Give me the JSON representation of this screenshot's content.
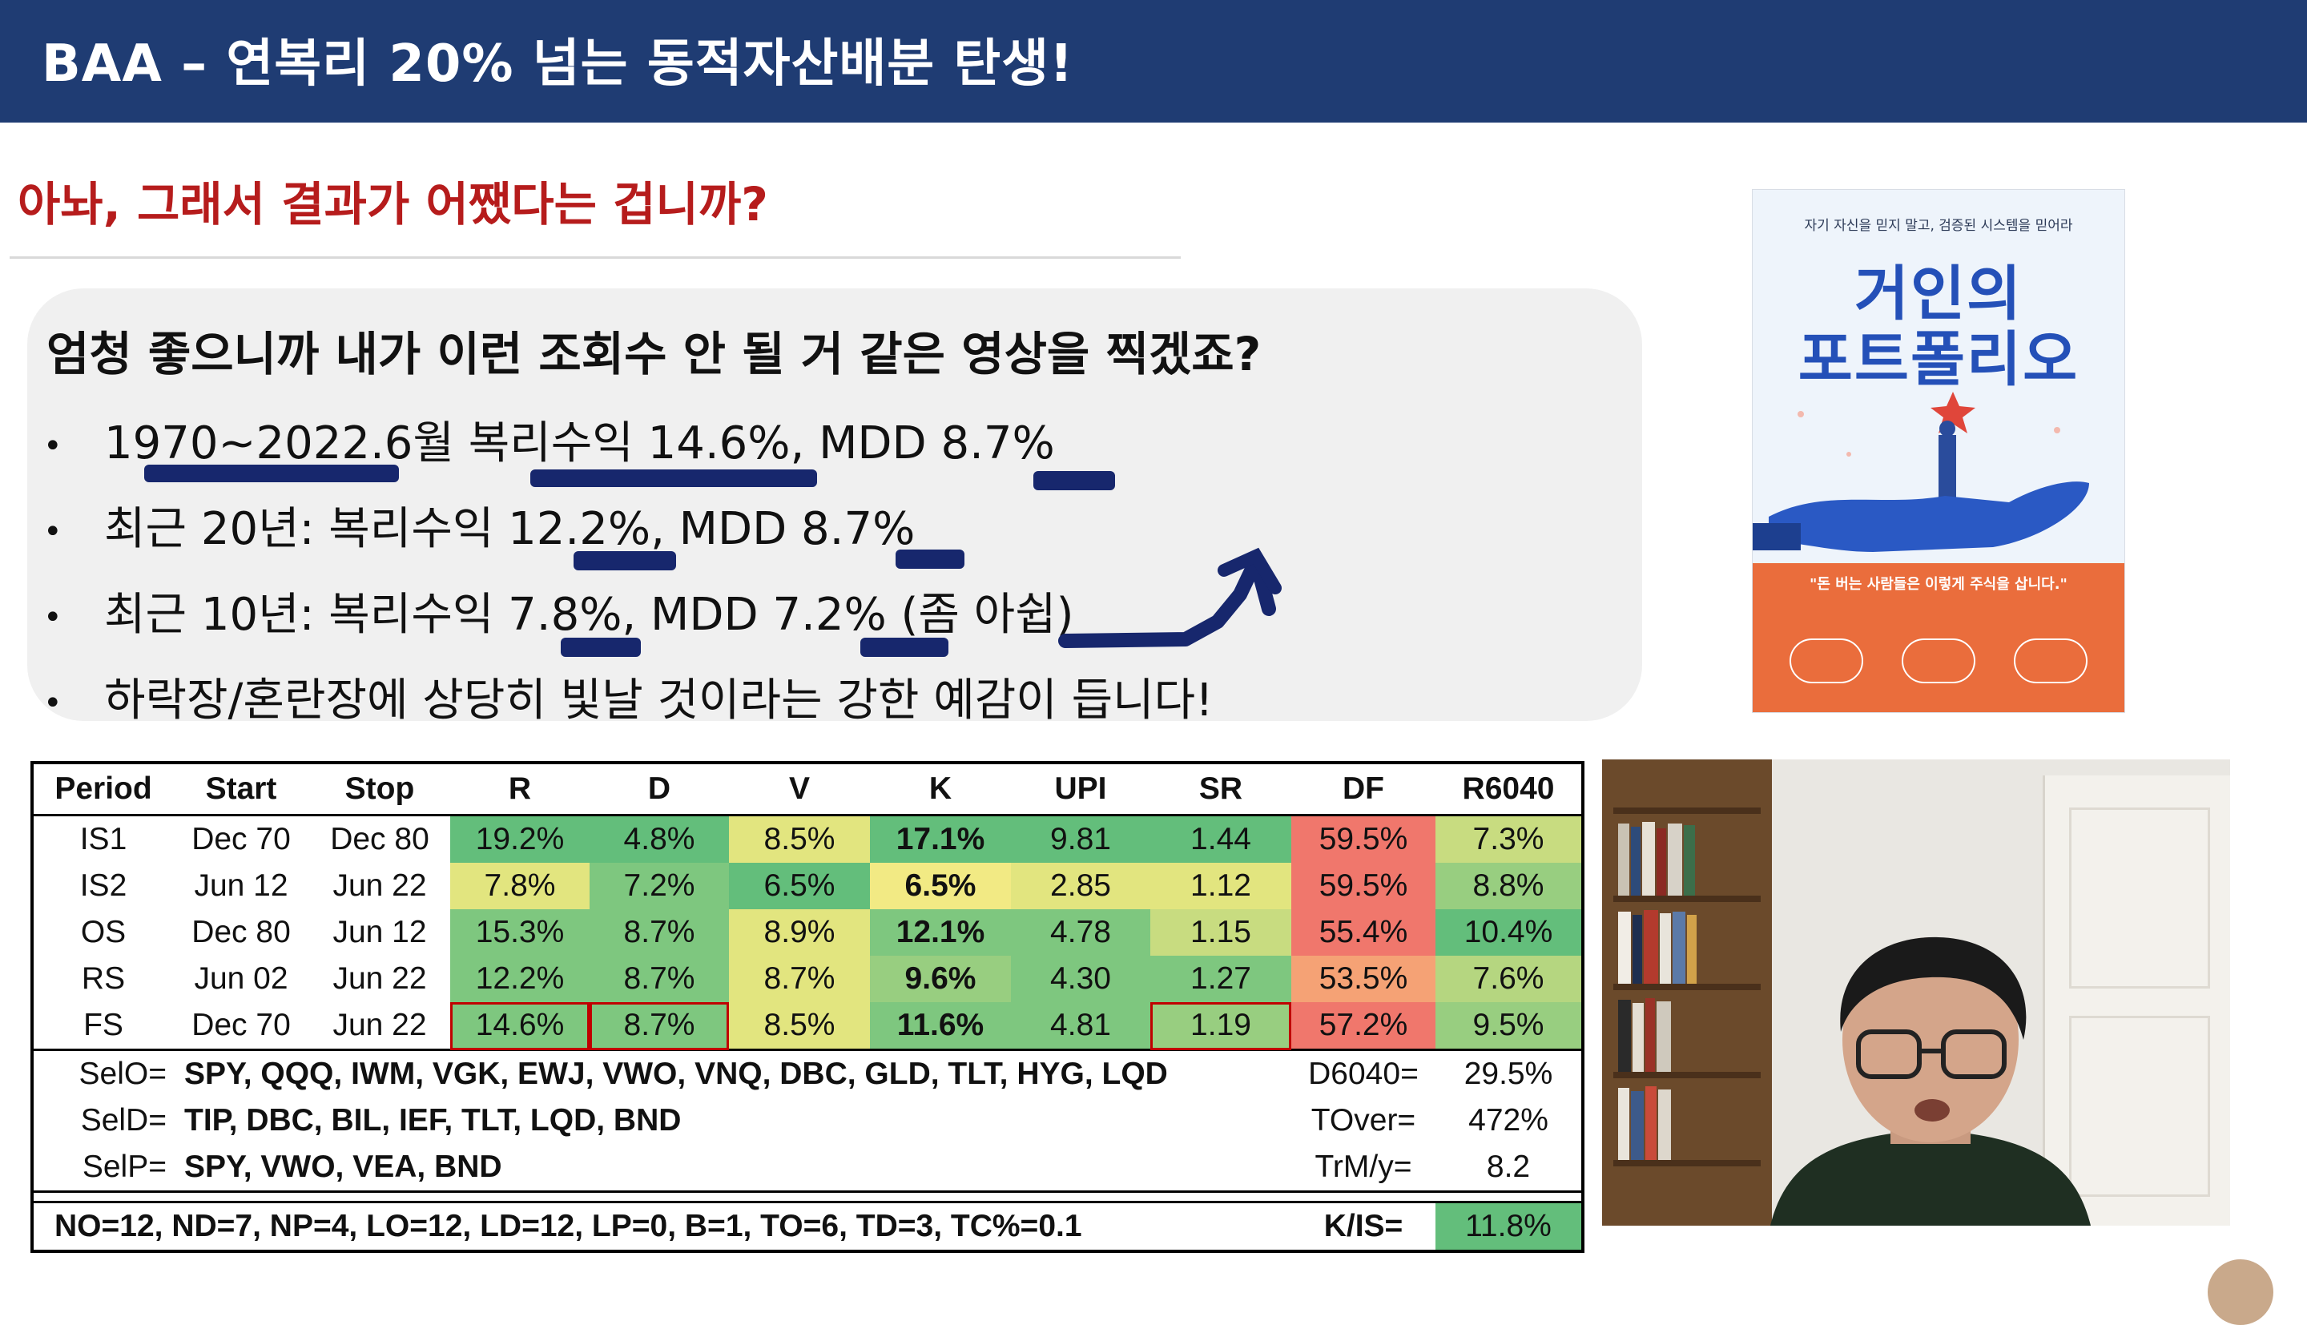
{
  "header": {
    "title": "BAA – 연복리 20% 넘는 동적자산배분 탄생!"
  },
  "question": "아놔, 그래서 결과가 어쨌다는 겁니까?",
  "bubble": {
    "lead": "엄청 좋으니까 내가 이런 조회수 안 될 거 같은 영상을 찍겠죠?",
    "bullets": [
      "1970~2022.6월 복리수익 14.6%, MDD 8.7%",
      "최근 20년: 복리수익 12.2%, MDD 8.7%",
      "최근 10년: 복리수익 7.8%, MDD 7.2% (좀 아쉽)",
      "하락장/혼란장에 상당히 빛날 것이라는 강한 예감이 듭니다!"
    ],
    "bullet_mark": "•"
  },
  "book": {
    "tagline": "자기 자신을 믿지 말고, 검증된 시스템을 믿어라",
    "title_line1": "거인의",
    "title_line2": "포트폴리오",
    "quote": "\"돈 버는 사람들은 이렇게 주식을 삽니다.\""
  },
  "table": {
    "headers": [
      "Period",
      "Start",
      "Stop",
      "R",
      "D",
      "V",
      "K",
      "UPI",
      "SR",
      "DF",
      "R6040"
    ],
    "rows": [
      [
        "IS1",
        "Dec 70",
        "Dec 80",
        "19.2%",
        "4.8%",
        "8.5%",
        "17.1%",
        "9.81",
        "1.44",
        "59.5%",
        "7.3%"
      ],
      [
        "IS2",
        "Jun 12",
        "Jun 22",
        "7.8%",
        "7.2%",
        "6.5%",
        "6.5%",
        "2.85",
        "1.12",
        "59.5%",
        "8.8%"
      ],
      [
        "OS",
        "Dec 80",
        "Jun 12",
        "15.3%",
        "8.7%",
        "8.9%",
        "12.1%",
        "4.78",
        "1.15",
        "55.4%",
        "10.4%"
      ],
      [
        "RS",
        "Jun 02",
        "Jun 22",
        "12.2%",
        "8.7%",
        "8.7%",
        "9.6%",
        "4.30",
        "1.27",
        "53.5%",
        "7.6%"
      ],
      [
        "FS",
        "Dec 70",
        "Jun 22",
        "14.6%",
        "8.7%",
        "8.5%",
        "11.6%",
        "4.81",
        "1.19",
        "57.2%",
        "9.5%"
      ]
    ],
    "sel": [
      {
        "label": "SelO=",
        "value": "SPY, QQQ, IWM, VGK, EWJ, VWO, VNQ, DBC, GLD, TLT, HYG, LQD",
        "k": "D6040=",
        "v": "29.5%"
      },
      {
        "label": "SelD=",
        "value": "TIP, DBC, BIL, IEF, TLT, LQD, BND",
        "k": "TOver=",
        "v": "472%"
      },
      {
        "label": "SelP=",
        "value": "SPY, VWO, VEA, BND",
        "k": "TrM/y=",
        "v": "8.2"
      }
    ],
    "footer": {
      "params": "NO=12, ND=7, NP=4, LO=12, LD=12, LP=0, B=1, TO=6, TD=3,  TC%=0.1",
      "k": "K/IS=",
      "v": "11.8%"
    }
  }
}
